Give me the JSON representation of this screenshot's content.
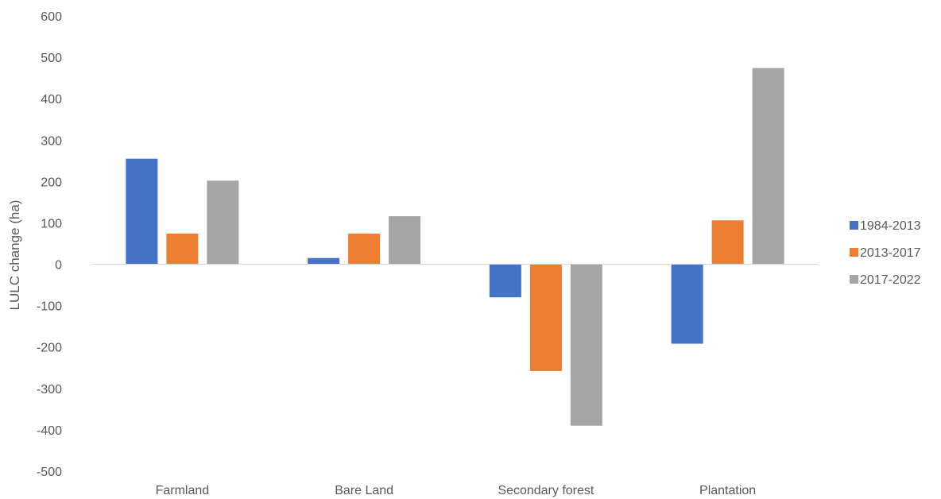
{
  "chart_data": {
    "type": "bar",
    "title": "",
    "xlabel": "",
    "ylabel": "LULC change (ha)",
    "categories": [
      "Farmland",
      "Bare Land",
      "Secondary forest",
      "Plantation"
    ],
    "series": [
      {
        "name": "1984-2013",
        "color": "#4472C4",
        "values": [
          255,
          15,
          -80,
          -192
        ]
      },
      {
        "name": "2013-2017",
        "color": "#ED7D31",
        "values": [
          74,
          74,
          -258,
          106
        ]
      },
      {
        "name": "2017-2022",
        "color": "#A5A5A5",
        "values": [
          202,
          116,
          -390,
          474
        ]
      }
    ],
    "ylim": [
      -500,
      600
    ],
    "yticks": [
      600,
      500,
      400,
      300,
      200,
      100,
      0,
      -100,
      -200,
      -300,
      -400,
      -500
    ],
    "grid": false,
    "legend_position": "right"
  }
}
